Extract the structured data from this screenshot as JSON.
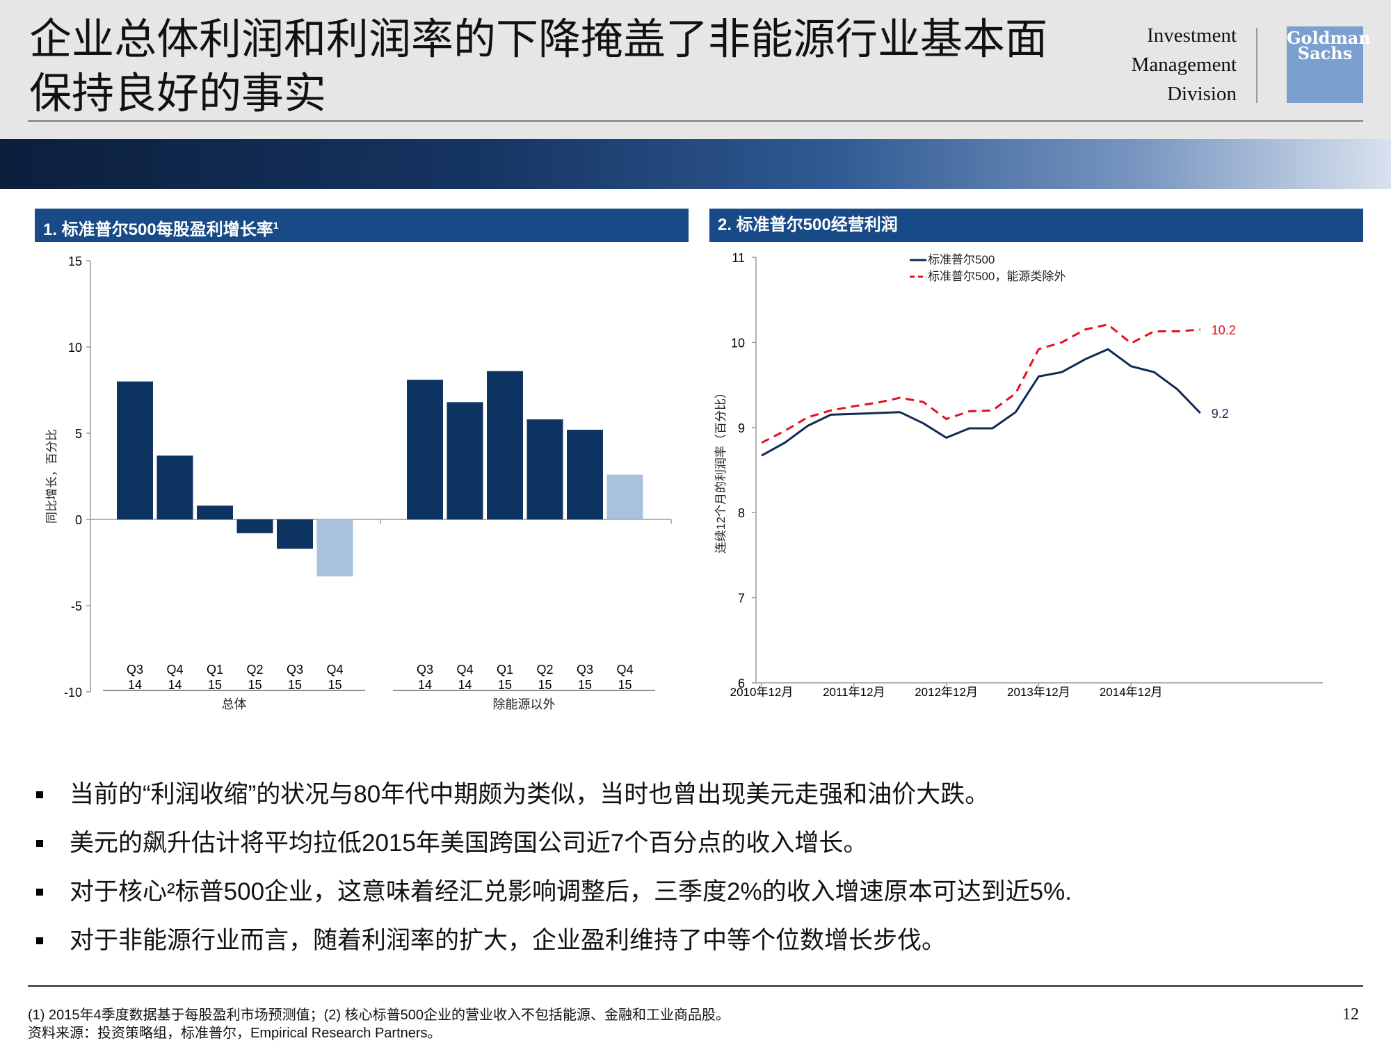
{
  "header": {
    "title_line1": "企业总体利润和利润率的下降掩盖了非能源行业基本面",
    "title_line2": "保持良好的事实",
    "division": [
      "Investment",
      "Management",
      "Division"
    ],
    "logo": [
      "Goldman",
      "Sachs"
    ]
  },
  "panels": {
    "left_title": "1. 标准普尔500每股盈利增长率",
    "left_title_sup": "1",
    "right_title": "2. 标准普尔500经营利润"
  },
  "chart_data": [
    {
      "type": "bar",
      "title": "1. 标准普尔500每股盈利增长率",
      "ylabel": "同比增长，百分比",
      "ylim": [
        -10,
        15
      ],
      "yticks": [
        15,
        10,
        5,
        0,
        -5,
        -10
      ],
      "groups": [
        {
          "name": "总体",
          "categories": [
            [
              "Q3",
              "14"
            ],
            [
              "Q4",
              "14"
            ],
            [
              "Q1",
              "15"
            ],
            [
              "Q2",
              "15"
            ],
            [
              "Q3",
              "15"
            ],
            [
              "Q4",
              "15"
            ]
          ],
          "values": [
            8.0,
            3.7,
            0.8,
            -0.8,
            -1.7,
            -3.3
          ],
          "estimate_flags": [
            false,
            false,
            false,
            false,
            false,
            true
          ]
        },
        {
          "name": "除能源以外",
          "categories": [
            [
              "Q3",
              "14"
            ],
            [
              "Q4",
              "14"
            ],
            [
              "Q1",
              "15"
            ],
            [
              "Q2",
              "15"
            ],
            [
              "Q3",
              "15"
            ],
            [
              "Q4",
              "15"
            ]
          ],
          "values": [
            8.1,
            6.8,
            8.6,
            5.8,
            5.2,
            2.6
          ],
          "estimate_flags": [
            false,
            false,
            false,
            false,
            false,
            true
          ]
        }
      ],
      "colors": {
        "actual": "#0d3461",
        "estimate": "#a9c1dd"
      }
    },
    {
      "type": "line",
      "title": "2. 标准普尔500经营利润",
      "ylabel": "连续12个月的利润率（百分比）",
      "ylim": [
        6,
        11
      ],
      "yticks": [
        11,
        10,
        9,
        8,
        7,
        6
      ],
      "xtick_labels": [
        "2010年12月",
        "2011年12月",
        "2012年12月",
        "2013年12月",
        "2014年12月"
      ],
      "xtick_index": [
        0,
        4,
        8,
        12,
        16
      ],
      "n_points": 20,
      "series": [
        {
          "name": "标准普尔500",
          "color": "#0d2a52",
          "style": "solid",
          "values": [
            8.67,
            8.82,
            9.02,
            9.15,
            9.16,
            9.17,
            9.18,
            9.05,
            8.88,
            8.99,
            8.99,
            9.18,
            9.6,
            9.65,
            9.8,
            9.92,
            9.72,
            9.65,
            9.45,
            9.17
          ],
          "end_label": "9.2"
        },
        {
          "name": "标准普尔500，能源类除外",
          "color": "#e3101e",
          "style": "dashed",
          "values": [
            8.82,
            8.96,
            9.12,
            9.2,
            9.25,
            9.29,
            9.35,
            9.3,
            9.1,
            9.19,
            9.2,
            9.4,
            9.92,
            10.0,
            10.15,
            10.21,
            9.99,
            10.13,
            10.13,
            10.15
          ],
          "end_label": "10.2"
        }
      ]
    }
  ],
  "bullets": [
    "当前的“利润收缩”的状况与80年代中期颇为类似，当时也曾出现美元走强和油价大跌。",
    "美元的飙升估计将平均拉低2015年美国跨国公司近7个百分点的收入增长。",
    "对于核心²标普500企业，这意味着经汇兑影响调整后，三季度2%的收入增速原本可达到近5%.",
    "对于非能源行业而言，随着利润率的扩大，企业盈利维持了中等个位数增长步伐。"
  ],
  "footnotes": {
    "note": "(1) 2015年4季度数据基于每股盈利市场预测值；(2) 核心标普500企业的营业收入不包括能源、金融和工业商品股。",
    "source": "资料来源：投资策略组，标准普尔，Empirical Research Partners。"
  },
  "page_number": "12"
}
